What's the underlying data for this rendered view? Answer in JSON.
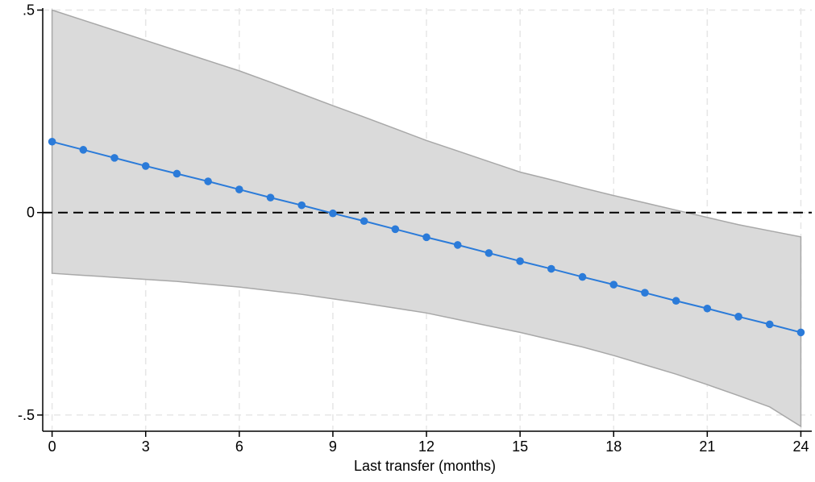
{
  "chart_data": {
    "type": "line",
    "title": "",
    "xlabel": "Last transfer (months)",
    "ylabel": "",
    "xlim": [
      -0.3,
      24.35
    ],
    "ylim": [
      -0.54,
      0.505
    ],
    "xticks": [
      0,
      3,
      6,
      9,
      12,
      15,
      18,
      21,
      24
    ],
    "xtick_labels": [
      "0",
      "3",
      "6",
      "9",
      "12",
      "15",
      "18",
      "21",
      "24"
    ],
    "yticks": [
      -0.5,
      0,
      0.5
    ],
    "ytick_labels": [
      "-.5",
      "0",
      ".5"
    ],
    "grid": true,
    "reference_line": {
      "y": 0,
      "style": "dashed"
    },
    "series": [
      {
        "x": [
          0,
          1,
          2,
          3,
          4,
          5,
          6,
          7,
          8,
          9,
          10,
          11,
          12,
          13,
          14,
          15,
          16,
          17,
          18,
          19,
          20,
          21,
          22,
          23,
          24
        ],
        "values": [
          0.175,
          0.155,
          0.135,
          0.115,
          0.096,
          0.077,
          0.057,
          0.037,
          0.018,
          -0.002,
          -0.021,
          -0.041,
          -0.061,
          -0.08,
          -0.1,
          -0.12,
          -0.139,
          -0.159,
          -0.178,
          -0.198,
          -0.218,
          -0.237,
          -0.257,
          -0.276,
          -0.296
        ],
        "ci_upper": [
          0.5,
          0.475,
          0.45,
          0.425,
          0.4,
          0.375,
          0.35,
          0.322,
          0.293,
          0.264,
          0.236,
          0.207,
          0.178,
          0.152,
          0.126,
          0.1,
          0.081,
          0.061,
          0.042,
          0.024,
          0.006,
          -0.012,
          -0.03,
          -0.045,
          -0.06
        ],
        "ci_lower": [
          -0.15,
          -0.155,
          -0.16,
          -0.165,
          -0.17,
          -0.177,
          -0.184,
          -0.193,
          -0.202,
          -0.213,
          -0.224,
          -0.236,
          -0.248,
          -0.264,
          -0.28,
          -0.296,
          -0.314,
          -0.332,
          -0.353,
          -0.376,
          -0.399,
          -0.425,
          -0.452,
          -0.48,
          -0.528
        ]
      }
    ]
  },
  "colors": {
    "line": "#2b7bd9",
    "band_fill": "#dadada",
    "band_edge": "#a8a8a8",
    "grid": "#e6e6e6",
    "axis": "#000000",
    "zero_line": "#000000"
  }
}
